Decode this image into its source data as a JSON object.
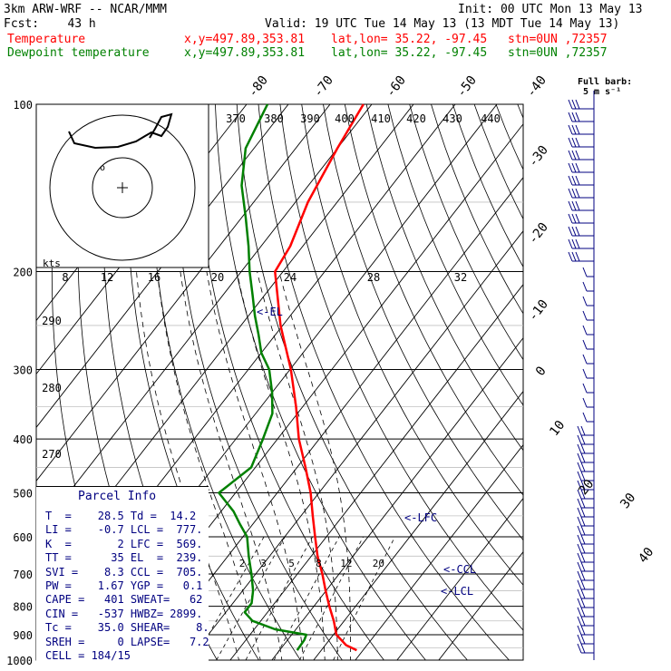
{
  "header": {
    "model": "3km ARW-WRF -- NCAR/MMM",
    "init": "Init: 00 UTC Mon 13 May 13",
    "fcst": "Fcst:    43 h",
    "valid": "Valid: 19 UTC Tue 14 May 13 (13 MDT Tue 14 May 13)",
    "temp_label": "Temperature",
    "dewp_label": "Dewpoint temperature",
    "temp_xy": "x,y=497.89,353.81",
    "temp_latlon": "lat,lon= 35.22, -97.45",
    "temp_stn": "stn=0UN ,72357",
    "dewp_xy": "x,y=497.89,353.81",
    "dewp_latlon": "lat,lon= 35.22, -97.45",
    "dewp_stn": "stn=0UN ,72357"
  },
  "barb_legend": {
    "line1": "Full barb:",
    "line2": "5 m s⁻¹"
  },
  "pressure_labels": [
    "100",
    "200",
    "300",
    "400",
    "500",
    "600",
    "700",
    "800",
    "900",
    "1000"
  ],
  "temp_labels": [
    "-80",
    "-70",
    "-60",
    "-50",
    "-40",
    "-30",
    "-20",
    "-10",
    "0",
    "10",
    "20",
    "30",
    "40"
  ],
  "theta_labels": [
    "370",
    "380",
    "390",
    "400",
    "410",
    "420",
    "430",
    "440"
  ],
  "theta_side_labels": [
    "290",
    "280",
    "270"
  ],
  "hodo_labels": [
    "kts",
    "8",
    "12",
    "16",
    "20",
    "24",
    "28",
    "32"
  ],
  "mixing_labels": [
    "2",
    "3",
    "5",
    "8",
    "12",
    "20"
  ],
  "levels": {
    "el": "<-EL",
    "lfc": "<-LFC",
    "ccl": "<-CCL",
    "lcl": "<-LCL"
  },
  "parcel_info": {
    "title": "Parcel Info",
    "rows": [
      "T  =    28.5 Td =  14.2",
      "LI =    -0.7 LCL =  777.",
      "K  =       2 LFC =  569.",
      "TT =      35 EL  =  239.",
      "SVI =    8.3 CCL =  705.",
      "PW =    1.67 YGP =   0.1",
      "CAPE =   401 SWEAT=   62",
      "CIN =   -537 HWBZ= 2899.",
      "Tc =    35.0 SHEAR=    8.",
      "SREH =     0 LAPSE=   7.2",
      "CELL = 184/15"
    ]
  },
  "colors": {
    "temperature": "#ff0000",
    "dewpoint": "#008000",
    "barbs": "#000080",
    "grid": "#000000"
  },
  "chart_data": {
    "type": "line",
    "title": "",
    "xlabel": "",
    "ylabel": "",
    "y_axis": "pressure (hPa), log scale",
    "ylim": [
      1000,
      100
    ],
    "x_axis": "skewed temperature (C)",
    "series": [
      {
        "name": "Temperature",
        "pressure": [
          960,
          940,
          900,
          850,
          800,
          750,
          700,
          650,
          600,
          550,
          500,
          450,
          400,
          350,
          300,
          250,
          200,
          180,
          150,
          120,
          100
        ],
        "values": [
          28.5,
          25.0,
          20.7,
          17.5,
          13.7,
          9.9,
          6.0,
          1.5,
          -2.7,
          -7.2,
          -12.0,
          -18.0,
          -24.9,
          -31.6,
          -39.8,
          -50.5,
          -61.9,
          -63.0,
          -67.0,
          -70.0,
          -72.0
        ]
      },
      {
        "name": "Dewpoint temperature",
        "pressure": [
          960,
          920,
          900,
          880,
          850,
          820,
          790,
          750,
          700,
          650,
          600,
          570,
          540,
          500,
          450,
          400,
          360,
          330,
          300,
          280,
          260,
          240,
          220,
          200,
          180,
          160,
          140,
          120,
          100
        ],
        "values": [
          14.2,
          14.0,
          13.5,
          5.0,
          -2.0,
          -5.5,
          -5.5,
          -7.5,
          -11.0,
          -15.0,
          -19.0,
          -23.0,
          -27.0,
          -34.0,
          -31.0,
          -33.5,
          -36.0,
          -40.0,
          -45.0,
          -50.0,
          -54.0,
          -58.5,
          -63.0,
          -68.0,
          -73.0,
          -79.0,
          -86.0,
          -92.0,
          -95.0
        ]
      }
    ],
    "annotations": [
      "<-EL",
      "<-LFC",
      "<-CCL",
      "<-LCL"
    ]
  }
}
